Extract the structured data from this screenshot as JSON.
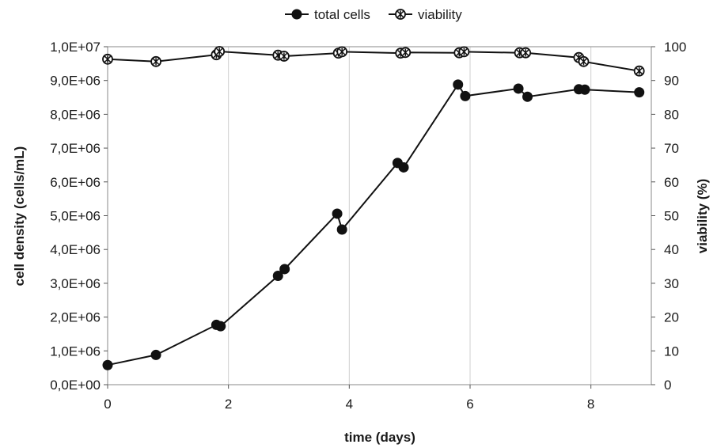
{
  "chart_data": {
    "type": "line",
    "title": "",
    "xlabel": "time (days)",
    "ylabel": "cell density (cells/mL)",
    "y2label": "viability (%)",
    "xlim": [
      0,
      9
    ],
    "ylim": [
      0,
      10000000
    ],
    "y2lim": [
      0,
      100
    ],
    "x_ticks": [
      0,
      2,
      4,
      6,
      8
    ],
    "x_tick_labels": [
      "0",
      "2",
      "4",
      "6",
      "8"
    ],
    "y_ticks": [
      0,
      1000000,
      2000000,
      3000000,
      4000000,
      5000000,
      6000000,
      7000000,
      8000000,
      9000000,
      10000000
    ],
    "y_tick_labels": [
      "0,0E+00",
      "1,0E+06",
      "2,0E+06",
      "3,0E+06",
      "4,0E+06",
      "5,0E+06",
      "6,0E+06",
      "7,0E+06",
      "8,0E+06",
      "9,0E+06",
      "1,0E+07"
    ],
    "y2_ticks": [
      0,
      10,
      20,
      30,
      40,
      50,
      60,
      70,
      80,
      90,
      100
    ],
    "y2_tick_labels": [
      "0",
      "10",
      "20",
      "30",
      "40",
      "50",
      "60",
      "70",
      "80",
      "90",
      "100"
    ],
    "grid": "vertical",
    "legend": "top-center",
    "series": [
      {
        "name": "total cells",
        "axis": "left",
        "marker": "filled-circle",
        "color": "#111111",
        "x": [
          0,
          0.8,
          1.8,
          1.87,
          2.82,
          2.93,
          3.8,
          3.88,
          4.8,
          4.9,
          5.8,
          5.92,
          6.8,
          6.95,
          7.8,
          7.9,
          8.8
        ],
        "values": [
          580000,
          880000,
          1770000,
          1730000,
          3220000,
          3420000,
          5060000,
          4590000,
          6560000,
          6430000,
          8880000,
          8540000,
          8760000,
          8520000,
          8740000,
          8730000,
          8650000
        ]
      },
      {
        "name": "viability",
        "axis": "right",
        "marker": "star-circle",
        "color": "#111111",
        "x": [
          0,
          0.8,
          1.8,
          1.85,
          2.82,
          2.92,
          3.82,
          3.88,
          4.85,
          4.93,
          5.82,
          5.9,
          6.82,
          6.92,
          7.8,
          7.88,
          8.8
        ],
        "values": [
          96.3,
          95.6,
          97.6,
          98.6,
          97.5,
          97.2,
          98.1,
          98.5,
          98.1,
          98.3,
          98.2,
          98.5,
          98.2,
          98.2,
          96.8,
          95.6,
          92.8
        ]
      }
    ]
  }
}
